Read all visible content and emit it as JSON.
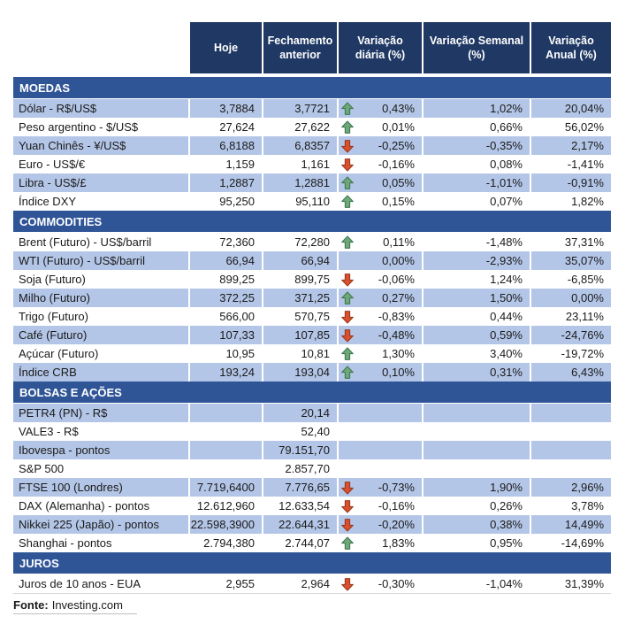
{
  "header": {
    "columns": [
      "Hoje",
      "Fechamento anterior",
      "Variação diária (%)",
      "Variação Semanal (%)",
      "Variação Anual (%)"
    ]
  },
  "colors": {
    "header_bg": "#1F3864",
    "section_bg": "#2F5597",
    "row_shaded_bg": "#B4C6E7",
    "arrow_up_fill": "#6FA779",
    "arrow_up_border": "#3E7A52",
    "arrow_down_fill": "#D9512C",
    "arrow_down_border": "#9A3A20"
  },
  "sections": [
    {
      "title": "MOEDAS",
      "rows": [
        {
          "label": "Dólar - R$/US$",
          "hoje": "3,7884",
          "fechamento": "3,7721",
          "arrow": "up",
          "diaria": "0,43%",
          "semanal": "1,02%",
          "anual": "20,04%",
          "shaded": true
        },
        {
          "label": "Peso argentino - $/US$",
          "hoje": "27,624",
          "fechamento": "27,622",
          "arrow": "up",
          "diaria": "0,01%",
          "semanal": "0,66%",
          "anual": "56,02%",
          "shaded": false
        },
        {
          "label": "Yuan Chinês - ¥/US$",
          "hoje": "6,8188",
          "fechamento": "6,8357",
          "arrow": "down",
          "diaria": "-0,25%",
          "semanal": "-0,35%",
          "anual": "2,17%",
          "shaded": true
        },
        {
          "label": "Euro - US$/€",
          "hoje": "1,159",
          "fechamento": "1,161",
          "arrow": "down",
          "diaria": "-0,16%",
          "semanal": "0,08%",
          "anual": "-1,41%",
          "shaded": false
        },
        {
          "label": "Libra - US$/£",
          "hoje": "1,2887",
          "fechamento": "1,2881",
          "arrow": "up",
          "diaria": "0,05%",
          "semanal": "-1,01%",
          "anual": "-0,91%",
          "shaded": true
        },
        {
          "label": "Índice DXY",
          "hoje": "95,250",
          "fechamento": "95,110",
          "arrow": "up",
          "diaria": "0,15%",
          "semanal": "0,07%",
          "anual": "1,82%",
          "shaded": false
        }
      ]
    },
    {
      "title": "COMMODITIES",
      "rows": [
        {
          "label": "Brent (Futuro) - US$/barril",
          "hoje": "72,360",
          "fechamento": "72,280",
          "arrow": "up",
          "diaria": "0,11%",
          "semanal": "-1,48%",
          "anual": "37,31%",
          "shaded": false
        },
        {
          "label": "WTI (Futuro) - US$/barril",
          "hoje": "66,94",
          "fechamento": "66,94",
          "arrow": "none",
          "diaria": "0,00%",
          "semanal": "-2,93%",
          "anual": "35,07%",
          "shaded": true
        },
        {
          "label": "Soja (Futuro)",
          "hoje": "899,25",
          "fechamento": "899,75",
          "arrow": "down",
          "diaria": "-0,06%",
          "semanal": "1,24%",
          "anual": "-6,85%",
          "shaded": false
        },
        {
          "label": "Milho (Futuro)",
          "hoje": "372,25",
          "fechamento": "371,25",
          "arrow": "up",
          "diaria": "0,27%",
          "semanal": "1,50%",
          "anual": "0,00%",
          "shaded": true
        },
        {
          "label": "Trigo (Futuro)",
          "hoje": "566,00",
          "fechamento": "570,75",
          "arrow": "down",
          "diaria": "-0,83%",
          "semanal": "0,44%",
          "anual": "23,11%",
          "shaded": false
        },
        {
          "label": "Café (Futuro)",
          "hoje": "107,33",
          "fechamento": "107,85",
          "arrow": "down",
          "diaria": "-0,48%",
          "semanal": "0,59%",
          "anual": "-24,76%",
          "shaded": true
        },
        {
          "label": "Açúcar (Futuro)",
          "hoje": "10,95",
          "fechamento": "10,81",
          "arrow": "up",
          "diaria": "1,30%",
          "semanal": "3,40%",
          "anual": "-19,72%",
          "shaded": false
        },
        {
          "label": "Índice CRB",
          "hoje": "193,24",
          "fechamento": "193,04",
          "arrow": "up",
          "diaria": "0,10%",
          "semanal": "0,31%",
          "anual": "6,43%",
          "shaded": true
        }
      ]
    },
    {
      "title": "BOLSAS E AÇÕES",
      "rows": [
        {
          "label": "PETR4 (PN) - R$",
          "hoje": "",
          "fechamento": "20,14",
          "arrow": "none",
          "diaria": "",
          "semanal": "",
          "anual": "",
          "shaded": true
        },
        {
          "label": "VALE3 - R$",
          "hoje": "",
          "fechamento": "52,40",
          "arrow": "none",
          "diaria": "",
          "semanal": "",
          "anual": "",
          "shaded": false
        },
        {
          "label": "Ibovespa - pontos",
          "hoje": "",
          "fechamento": "79.151,70",
          "arrow": "none",
          "diaria": "",
          "semanal": "",
          "anual": "",
          "shaded": true
        },
        {
          "label": "S&P 500",
          "hoje": "",
          "fechamento": "2.857,70",
          "arrow": "none",
          "diaria": "",
          "semanal": "",
          "anual": "",
          "shaded": false
        },
        {
          "label": "FTSE 100 (Londres)",
          "hoje": "7.719,6400",
          "fechamento": "7.776,65",
          "arrow": "down",
          "diaria": "-0,73%",
          "semanal": "1,90%",
          "anual": "2,96%",
          "shaded": true
        },
        {
          "label": "DAX (Alemanha) - pontos",
          "hoje": "12.612,960",
          "fechamento": "12.633,54",
          "arrow": "down",
          "diaria": "-0,16%",
          "semanal": "0,26%",
          "anual": "3,78%",
          "shaded": false
        },
        {
          "label": "Nikkei 225 (Japão) - pontos",
          "hoje": "22.598,3900",
          "fechamento": "22.644,31",
          "arrow": "down",
          "diaria": "-0,20%",
          "semanal": "0,38%",
          "anual": "14,49%",
          "shaded": true
        },
        {
          "label": "Shanghai - pontos",
          "hoje": "2.794,380",
          "fechamento": "2.744,07",
          "arrow": "up",
          "diaria": "1,83%",
          "semanal": "0,95%",
          "anual": "-14,69%",
          "shaded": false
        }
      ]
    },
    {
      "title": "JUROS",
      "rows": [
        {
          "label": "Juros de 10 anos - EUA",
          "hoje": "2,955",
          "fechamento": "2,964",
          "arrow": "down",
          "diaria": "-0,30%",
          "semanal": "-1,04%",
          "anual": "31,39%",
          "shaded": false
        }
      ]
    }
  ],
  "footer": {
    "label": "Fonte:",
    "source": "Investing.com"
  }
}
